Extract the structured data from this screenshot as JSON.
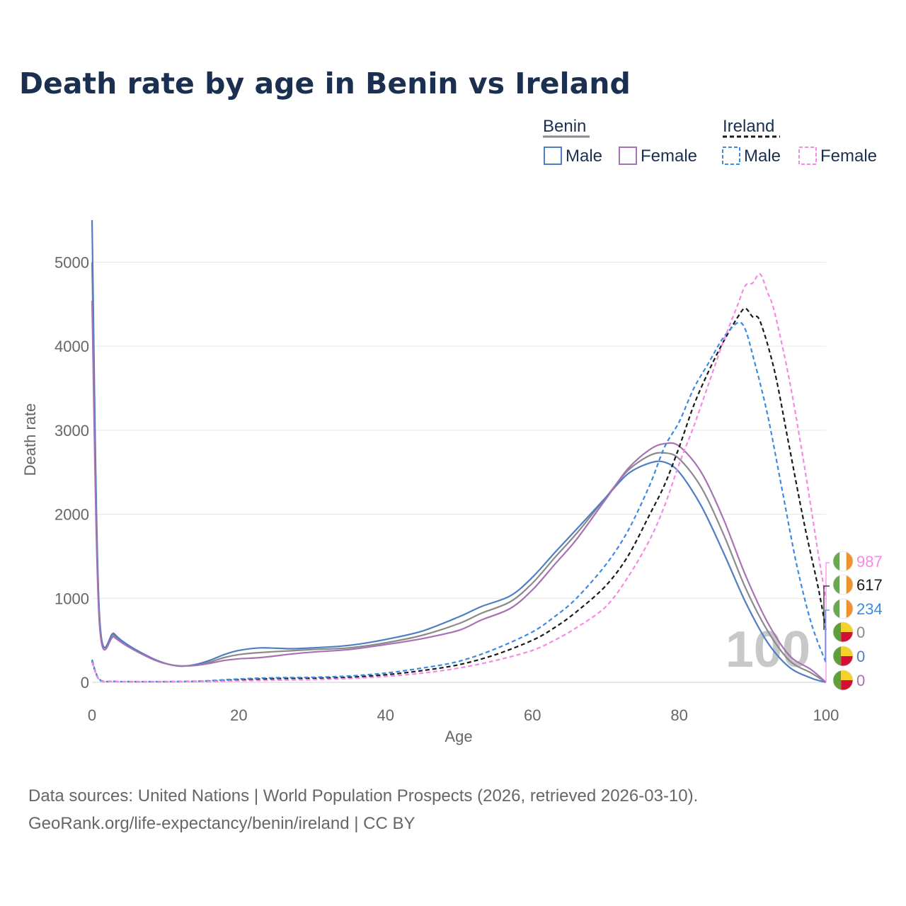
{
  "title": "Death rate by age in Benin vs Ireland",
  "legend": {
    "groups": [
      {
        "name": "Benin",
        "items": [
          "Male",
          "Female"
        ]
      },
      {
        "name": "Ireland",
        "items": [
          "Male",
          "Female"
        ]
      }
    ]
  },
  "colors": {
    "benin_male": "#4e7ec3",
    "benin_female": "#a772b3",
    "benin_total": "#8a8a8a",
    "ireland_male": "#3d8be0",
    "ireland_female": "#f58ae6",
    "ireland_total": "#1a1a1a",
    "benin_flag_green": "#5f9e3a",
    "benin_flag_yellow": "#f5d12a",
    "benin_flag_red": "#d21034",
    "ireland_flag_green": "#6aa84f",
    "ireland_flag_orange": "#f0922d"
  },
  "end_values": [
    {
      "value": "987",
      "color": "#f58ae6",
      "country": "Ireland"
    },
    {
      "value": "617",
      "color": "#1a1a1a",
      "country": "Ireland"
    },
    {
      "value": "234",
      "color": "#3d8be0",
      "country": "Ireland"
    },
    {
      "value": "0",
      "color": "#8a8a8a",
      "country": "Benin"
    },
    {
      "value": "0",
      "color": "#4e7ec3",
      "country": "Benin"
    },
    {
      "value": "0",
      "color": "#a772b3",
      "country": "Benin"
    }
  ],
  "watermark": "100",
  "source": {
    "line1": "Data sources: United Nations | World Population Prospects (2026, retrieved 2026-03-10).",
    "line2": "GeoRank.org/life-expectancy/benin/ireland | CC BY"
  },
  "chart_data": {
    "type": "line",
    "xlabel": "Age",
    "ylabel": "Death rate",
    "xlim": [
      0,
      100
    ],
    "ylim": [
      0,
      5500
    ],
    "xticks": [
      0,
      20,
      40,
      60,
      80,
      100
    ],
    "yticks": [
      0,
      1000,
      2000,
      3000,
      4000,
      5000
    ],
    "grid": true,
    "series": [
      {
        "name": "Benin Total",
        "style": "solid",
        "color": "#8a8a8a",
        "points": [
          [
            0,
            5000
          ],
          [
            1,
            780
          ],
          [
            3,
            560
          ],
          [
            5,
            430
          ],
          [
            8,
            290
          ],
          [
            10,
            225
          ],
          [
            12,
            195
          ],
          [
            14,
            205
          ],
          [
            16,
            240
          ],
          [
            18,
            295
          ],
          [
            20,
            330
          ],
          [
            23,
            355
          ],
          [
            27,
            375
          ],
          [
            30,
            390
          ],
          [
            35,
            410
          ],
          [
            40,
            470
          ],
          [
            45,
            560
          ],
          [
            50,
            700
          ],
          [
            53,
            820
          ],
          [
            57,
            960
          ],
          [
            60,
            1180
          ],
          [
            63,
            1480
          ],
          [
            66,
            1770
          ],
          [
            70,
            2200
          ],
          [
            73,
            2520
          ],
          [
            76,
            2700
          ],
          [
            78,
            2730
          ],
          [
            80,
            2660
          ],
          [
            83,
            2320
          ],
          [
            86,
            1770
          ],
          [
            89,
            1130
          ],
          [
            92,
            620
          ],
          [
            95,
            260
          ],
          [
            98,
            110
          ],
          [
            100,
            0
          ]
        ]
      },
      {
        "name": "Benin Male",
        "style": "solid",
        "color": "#4e7ec3",
        "points": [
          [
            0,
            5500
          ],
          [
            1,
            820
          ],
          [
            3,
            580
          ],
          [
            5,
            440
          ],
          [
            8,
            295
          ],
          [
            10,
            225
          ],
          [
            12,
            192
          ],
          [
            14,
            210
          ],
          [
            16,
            260
          ],
          [
            18,
            330
          ],
          [
            20,
            380
          ],
          [
            23,
            410
          ],
          [
            27,
            400
          ],
          [
            30,
            410
          ],
          [
            35,
            440
          ],
          [
            40,
            510
          ],
          [
            45,
            610
          ],
          [
            50,
            780
          ],
          [
            53,
            900
          ],
          [
            57,
            1030
          ],
          [
            60,
            1250
          ],
          [
            63,
            1540
          ],
          [
            66,
            1820
          ],
          [
            70,
            2200
          ],
          [
            73,
            2480
          ],
          [
            76,
            2610
          ],
          [
            78,
            2620
          ],
          [
            80,
            2500
          ],
          [
            83,
            2100
          ],
          [
            86,
            1550
          ],
          [
            89,
            960
          ],
          [
            92,
            480
          ],
          [
            95,
            180
          ],
          [
            98,
            50
          ],
          [
            100,
            0
          ]
        ]
      },
      {
        "name": "Benin Female",
        "style": "solid",
        "color": "#a772b3",
        "points": [
          [
            0,
            4540
          ],
          [
            1,
            710
          ],
          [
            3,
            540
          ],
          [
            5,
            420
          ],
          [
            8,
            285
          ],
          [
            10,
            222
          ],
          [
            12,
            195
          ],
          [
            14,
            200
          ],
          [
            16,
            225
          ],
          [
            18,
            260
          ],
          [
            20,
            280
          ],
          [
            23,
            295
          ],
          [
            27,
            335
          ],
          [
            30,
            360
          ],
          [
            35,
            390
          ],
          [
            40,
            450
          ],
          [
            45,
            520
          ],
          [
            50,
            620
          ],
          [
            53,
            740
          ],
          [
            57,
            880
          ],
          [
            60,
            1100
          ],
          [
            63,
            1400
          ],
          [
            66,
            1700
          ],
          [
            70,
            2180
          ],
          [
            73,
            2540
          ],
          [
            76,
            2770
          ],
          [
            78,
            2840
          ],
          [
            80,
            2810
          ],
          [
            83,
            2500
          ],
          [
            86,
            1950
          ],
          [
            89,
            1280
          ],
          [
            92,
            720
          ],
          [
            95,
            320
          ],
          [
            98,
            150
          ],
          [
            100,
            0
          ]
        ]
      },
      {
        "name": "Ireland Total",
        "style": "dashed",
        "color": "#1a1a1a",
        "points": [
          [
            0,
            250
          ],
          [
            1,
            30
          ],
          [
            3,
            10
          ],
          [
            5,
            8
          ],
          [
            10,
            8
          ],
          [
            15,
            12
          ],
          [
            20,
            30
          ],
          [
            25,
            45
          ],
          [
            30,
            50
          ],
          [
            35,
            60
          ],
          [
            40,
            90
          ],
          [
            45,
            140
          ],
          [
            50,
            210
          ],
          [
            55,
            330
          ],
          [
            60,
            500
          ],
          [
            63,
            650
          ],
          [
            66,
            840
          ],
          [
            70,
            1150
          ],
          [
            73,
            1500
          ],
          [
            76,
            2000
          ],
          [
            78,
            2350
          ],
          [
            80,
            2800
          ],
          [
            82,
            3300
          ],
          [
            84,
            3700
          ],
          [
            86,
            4050
          ],
          [
            88,
            4350
          ],
          [
            89,
            4450
          ],
          [
            90,
            4350
          ],
          [
            91,
            4300
          ],
          [
            93,
            3700
          ],
          [
            95,
            2800
          ],
          [
            97,
            1900
          ],
          [
            99,
            1100
          ],
          [
            100,
            617
          ]
        ]
      },
      {
        "name": "Ireland Male",
        "style": "dashed",
        "color": "#3d8be0",
        "points": [
          [
            0,
            270
          ],
          [
            1,
            35
          ],
          [
            3,
            12
          ],
          [
            5,
            9
          ],
          [
            10,
            9
          ],
          [
            15,
            15
          ],
          [
            20,
            40
          ],
          [
            25,
            55
          ],
          [
            30,
            60
          ],
          [
            35,
            75
          ],
          [
            40,
            110
          ],
          [
            45,
            170
          ],
          [
            50,
            250
          ],
          [
            55,
            400
          ],
          [
            60,
            600
          ],
          [
            63,
            780
          ],
          [
            66,
            1000
          ],
          [
            70,
            1400
          ],
          [
            73,
            1800
          ],
          [
            76,
            2350
          ],
          [
            78,
            2800
          ],
          [
            80,
            3100
          ],
          [
            82,
            3500
          ],
          [
            84,
            3800
          ],
          [
            86,
            4100
          ],
          [
            88,
            4280
          ],
          [
            89,
            4200
          ],
          [
            90,
            3900
          ],
          [
            92,
            3200
          ],
          [
            94,
            2300
          ],
          [
            96,
            1400
          ],
          [
            98,
            700
          ],
          [
            100,
            234
          ]
        ]
      },
      {
        "name": "Ireland Female",
        "style": "dashed",
        "color": "#f58ae6",
        "points": [
          [
            0,
            240
          ],
          [
            1,
            28
          ],
          [
            3,
            9
          ],
          [
            5,
            7
          ],
          [
            10,
            7
          ],
          [
            15,
            9
          ],
          [
            20,
            18
          ],
          [
            25,
            25
          ],
          [
            30,
            32
          ],
          [
            35,
            45
          ],
          [
            40,
            70
          ],
          [
            45,
            110
          ],
          [
            50,
            170
          ],
          [
            55,
            260
          ],
          [
            60,
            380
          ],
          [
            63,
            500
          ],
          [
            66,
            650
          ],
          [
            70,
            900
          ],
          [
            73,
            1250
          ],
          [
            76,
            1700
          ],
          [
            78,
            2100
          ],
          [
            80,
            2600
          ],
          [
            82,
            3050
          ],
          [
            84,
            3550
          ],
          [
            86,
            4050
          ],
          [
            88,
            4500
          ],
          [
            89,
            4720
          ],
          [
            90,
            4750
          ],
          [
            91,
            4860
          ],
          [
            92,
            4650
          ],
          [
            93,
            4400
          ],
          [
            95,
            3600
          ],
          [
            97,
            2600
          ],
          [
            99,
            1500
          ],
          [
            100,
            987
          ]
        ]
      }
    ]
  }
}
